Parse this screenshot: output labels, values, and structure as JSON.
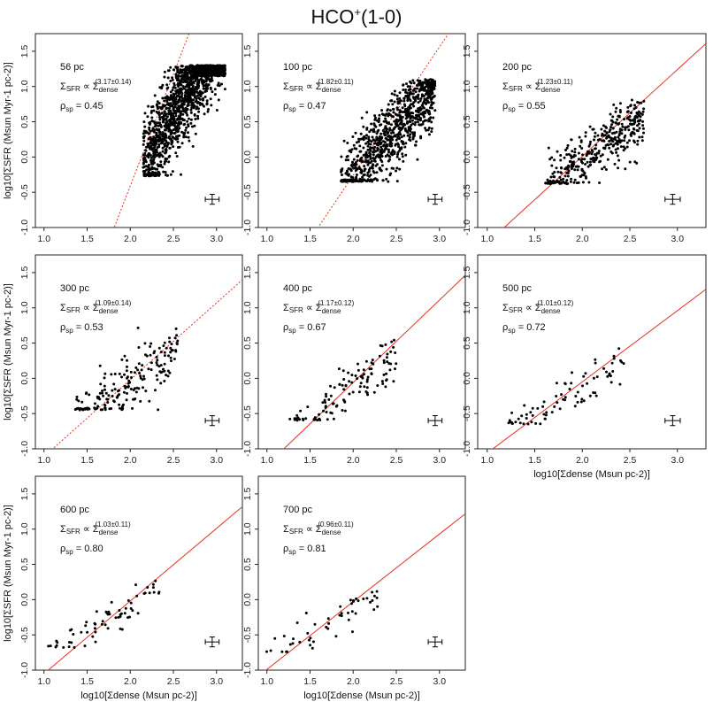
{
  "title_main": "HCO",
  "title_sup": "+",
  "title_tail": "(1-0)",
  "ylabel": "log10[ΣSFR (Msun Myr-1 pc-2)]",
  "xlabel": "log10[Σdense (Msun pc-2)]",
  "colors": {
    "fit": "#e8301e",
    "points": "#000000",
    "axes": "#222222"
  },
  "chart_data": [
    {
      "type": "scatter",
      "scale": "56 pc",
      "exponent": "(3.17±0.14)",
      "rho": "0.45",
      "slope": 3.17,
      "intercept": -6.75,
      "line_style": "dashed",
      "xlim": [
        0.9,
        3.3
      ],
      "ylim": [
        -1.0,
        1.75
      ],
      "xticks": [
        "1.0",
        "1.5",
        "2.0",
        "2.5",
        "3.0"
      ],
      "yticks": [
        "-1.0",
        "-0.5",
        "0.0",
        "0.5",
        "1.0",
        "1.5"
      ],
      "cloud": {
        "n": 1500,
        "x_range": [
          2.15,
          3.1
        ],
        "y_min": -0.27,
        "y_max": 1.3,
        "scatter": 0.33
      },
      "errorbar": {
        "x": 2.95,
        "y": -0.6,
        "dx": 0.08,
        "dy": 0.07
      }
    },
    {
      "type": "scatter",
      "scale": "100 pc",
      "exponent": "(1.82±0.11)",
      "rho": "0.47",
      "slope": 1.82,
      "intercept": -3.9,
      "line_style": "dashed",
      "xlim": [
        0.9,
        3.3
      ],
      "ylim": [
        -1.0,
        1.75
      ],
      "xticks": [
        "1.0",
        "1.5",
        "2.0",
        "2.5",
        "3.0"
      ],
      "yticks": [
        "-1.0",
        "-0.5",
        "0.0",
        "0.5",
        "1.0",
        "1.5"
      ],
      "cloud": {
        "n": 900,
        "x_range": [
          1.85,
          2.95
        ],
        "y_min": -0.35,
        "y_max": 1.1,
        "scatter": 0.26
      },
      "errorbar": {
        "x": 2.95,
        "y": -0.6,
        "dx": 0.08,
        "dy": 0.07
      }
    },
    {
      "type": "scatter",
      "scale": "200 pc",
      "exponent": "(1.23±0.11)",
      "rho": "0.55",
      "slope": 1.23,
      "intercept": -2.45,
      "line_style": "solid",
      "xlim": [
        0.9,
        3.3
      ],
      "ylim": [
        -1.0,
        1.75
      ],
      "xticks": [
        "1.0",
        "1.5",
        "2.0",
        "2.5",
        "3.0"
      ],
      "yticks": [
        "-1.0",
        "-0.5",
        "0.0",
        "0.5",
        "1.0",
        "1.5"
      ],
      "cloud": {
        "n": 380,
        "x_range": [
          1.6,
          2.65
        ],
        "y_min": -0.38,
        "y_max": 0.9,
        "scatter": 0.2
      },
      "errorbar": {
        "x": 2.95,
        "y": -0.6,
        "dx": 0.08,
        "dy": 0.07
      }
    },
    {
      "type": "scatter",
      "scale": "300 pc",
      "exponent": "(1.09±0.14)",
      "rho": "0.53",
      "slope": 1.09,
      "intercept": -2.2,
      "line_style": "dashed",
      "xlim": [
        0.9,
        3.3
      ],
      "ylim": [
        -1.0,
        1.75
      ],
      "xticks": [
        "1.0",
        "1.5",
        "2.0",
        "2.5",
        "3.0"
      ],
      "yticks": [
        "-1.0",
        "-0.5",
        "0.0",
        "0.5",
        "1.0",
        "1.5"
      ],
      "cloud": {
        "n": 190,
        "x_range": [
          1.35,
          2.55
        ],
        "y_min": -0.45,
        "y_max": 0.72,
        "scatter": 0.2
      },
      "errorbar": {
        "x": 2.95,
        "y": -0.6,
        "dx": 0.08,
        "dy": 0.07
      }
    },
    {
      "type": "scatter",
      "scale": "400 pc",
      "exponent": "(1.17±0.12)",
      "rho": "0.67",
      "slope": 1.17,
      "intercept": -2.4,
      "line_style": "solid",
      "xlim": [
        0.9,
        3.3
      ],
      "ylim": [
        -1.0,
        1.75
      ],
      "xticks": [
        "1.0",
        "1.5",
        "2.0",
        "2.5",
        "3.0"
      ],
      "yticks": [
        "-1.0",
        "-0.5",
        "0.0",
        "0.5",
        "1.0",
        "1.5"
      ],
      "cloud": {
        "n": 120,
        "x_range": [
          1.25,
          2.5
        ],
        "y_min": -0.6,
        "y_max": 0.62,
        "scatter": 0.16
      },
      "errorbar": {
        "x": 2.95,
        "y": -0.6,
        "dx": 0.08,
        "dy": 0.07
      }
    },
    {
      "type": "scatter",
      "scale": "500 pc",
      "exponent": "(1.01±0.12)",
      "rho": "0.72",
      "slope": 1.01,
      "intercept": -2.07,
      "line_style": "solid",
      "xlim": [
        0.9,
        3.3
      ],
      "ylim": [
        -1.0,
        1.75
      ],
      "xticks": [
        "1.0",
        "1.5",
        "2.0",
        "2.5",
        "3.0"
      ],
      "yticks": [
        "-1.0",
        "-0.5",
        "0.0",
        "0.5",
        "1.0",
        "1.5"
      ],
      "cloud": {
        "n": 80,
        "x_range": [
          1.2,
          2.45
        ],
        "y_min": -0.65,
        "y_max": 0.52,
        "scatter": 0.14
      },
      "errorbar": {
        "x": 2.95,
        "y": -0.6,
        "dx": 0.08,
        "dy": 0.07
      }
    },
    {
      "type": "scatter",
      "scale": "600 pc",
      "exponent": "(1.03±0.11)",
      "rho": "0.80",
      "slope": 1.03,
      "intercept": -2.08,
      "line_style": "solid",
      "xlim": [
        0.9,
        3.3
      ],
      "ylim": [
        -1.0,
        1.75
      ],
      "xticks": [
        "1.0",
        "1.5",
        "2.0",
        "2.5",
        "3.0"
      ],
      "yticks": [
        "-1.0",
        "-0.5",
        "0.0",
        "0.5",
        "1.0",
        "1.5"
      ],
      "cloud": {
        "n": 65,
        "x_range": [
          1.05,
          2.35
        ],
        "y_min": -0.68,
        "y_max": 0.45,
        "scatter": 0.12
      },
      "errorbar": {
        "x": 2.95,
        "y": -0.6,
        "dx": 0.08,
        "dy": 0.07
      }
    },
    {
      "type": "scatter",
      "scale": "700 pc",
      "exponent": "(0.96±0.11)",
      "rho": "0.81",
      "slope": 0.96,
      "intercept": -1.95,
      "line_style": "solid",
      "xlim": [
        0.9,
        3.3
      ],
      "ylim": [
        -1.0,
        1.75
      ],
      "xticks": [
        "1.0",
        "1.5",
        "2.0",
        "2.5",
        "3.0"
      ],
      "yticks": [
        "-1.0",
        "-0.5",
        "0.0",
        "0.5",
        "1.0",
        "1.5"
      ],
      "cloud": {
        "n": 50,
        "x_range": [
          0.98,
          2.3
        ],
        "y_min": -0.75,
        "y_max": 0.4,
        "scatter": 0.12
      },
      "errorbar": {
        "x": 2.95,
        "y": -0.6,
        "dx": 0.08,
        "dy": 0.07
      }
    }
  ]
}
